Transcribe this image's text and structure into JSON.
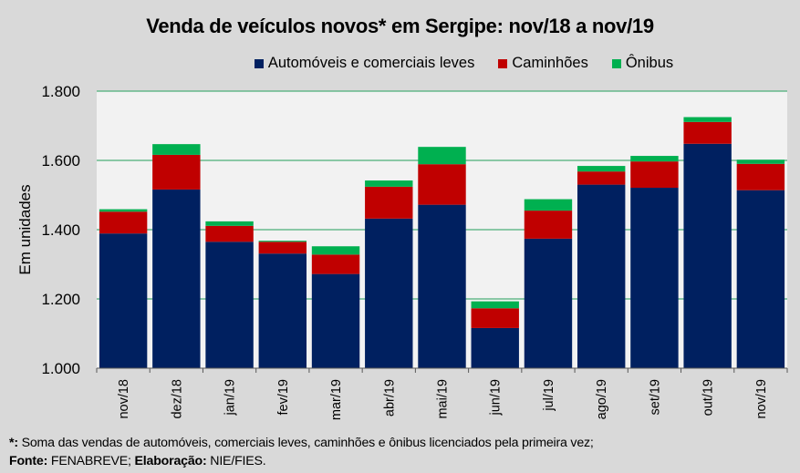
{
  "chart_data": {
    "type": "bar",
    "stacked": true,
    "title": "Venda de veículos novos* em Sergipe: nov/18 a nov/19",
    "xlabel": "",
    "ylabel": "Em unidades",
    "ylim": [
      1000,
      1800
    ],
    "yticks": [
      1000,
      1200,
      1400,
      1600,
      1800
    ],
    "ytick_labels": [
      "1.000",
      "1.200",
      "1.400",
      "1.600",
      "1.800"
    ],
    "grid": true,
    "legend_position": "top-center",
    "categories": [
      "nov/18",
      "dez/18",
      "jan/19",
      "fev/19",
      "mar/19",
      "abr/19",
      "mai/19",
      "jun/19",
      "jul/19",
      "ago/19",
      "set/19",
      "out/19",
      "nov/19"
    ],
    "series": [
      {
        "name": "Automóveis e comerciais leves",
        "color": "#002060",
        "values": [
          1389,
          1516,
          1365,
          1331,
          1272,
          1432,
          1472,
          1116,
          1374,
          1530,
          1521,
          1648,
          1514
        ]
      },
      {
        "name": "Caminhões",
        "color": "#c00000",
        "values": [
          63,
          100,
          46,
          34,
          56,
          92,
          117,
          57,
          81,
          38,
          76,
          63,
          76
        ]
      },
      {
        "name": "Ônibus",
        "color": "#00b050",
        "values": [
          7,
          31,
          13,
          3,
          24,
          18,
          50,
          20,
          33,
          16,
          16,
          14,
          12
        ]
      }
    ]
  },
  "colors": {
    "background": "#d9d9d9",
    "plot_background": "#f2f2f2",
    "gridline": "#4caf7a"
  },
  "footer": {
    "note_marker": "*:",
    "note_text": " Soma das vendas de automóveis, comerciais leves, caminhões e ônibus licenciados pela primeira vez;",
    "source_label": "Fonte:",
    "source_text": " FENABREVE; ",
    "elab_label": "Elaboração:",
    "elab_text": " NIE/FIES."
  }
}
